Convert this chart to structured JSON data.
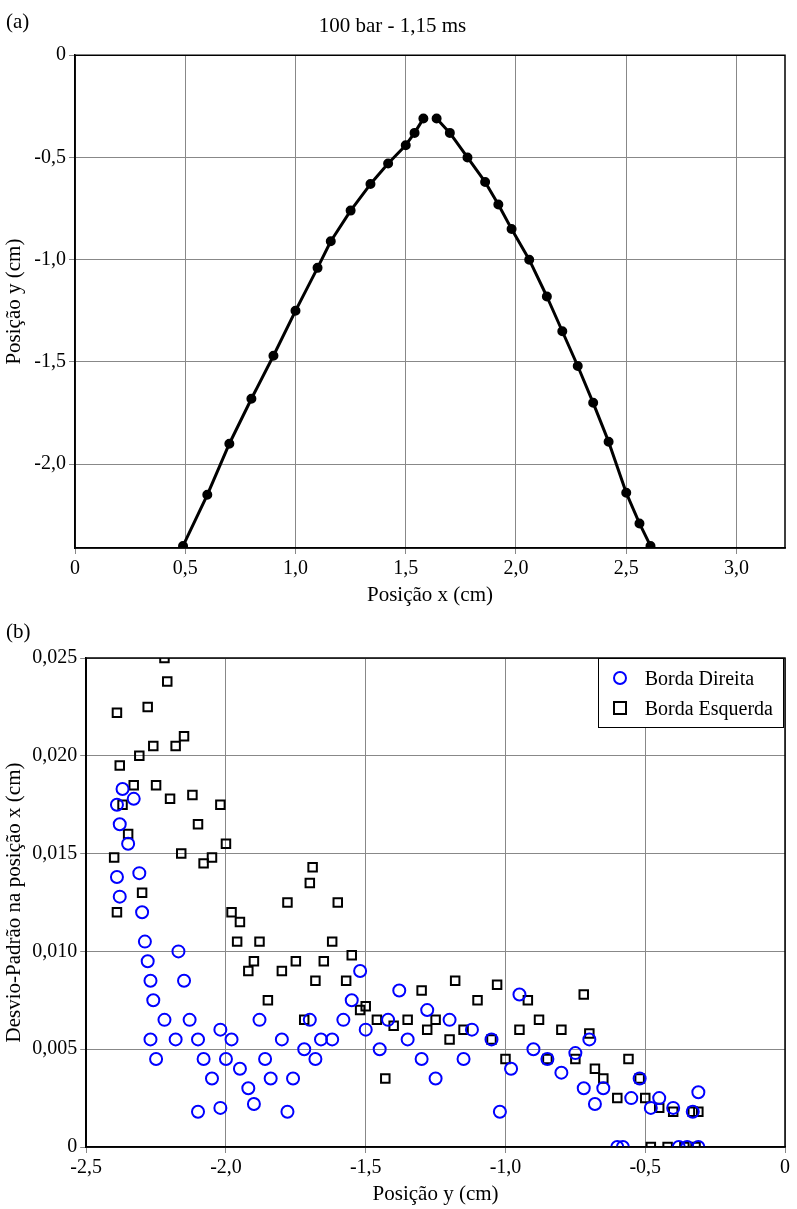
{
  "chart_data": [
    {
      "type": "line",
      "title": "100 bar - 1,15 ms",
      "xlabel": "Posição x (cm)",
      "ylabel": "Posição y (cm)",
      "annotations": [
        "(a)"
      ],
      "xlim": [
        0,
        3.22
      ],
      "ylim": [
        -2.41,
        0
      ],
      "xticks": [
        0,
        {
          "value": 0.5,
          "label": "0,5"
        },
        {
          "value": 1,
          "label": "1,0"
        },
        {
          "value": 1.5,
          "label": "1,5"
        },
        {
          "value": 2,
          "label": "2,0"
        },
        {
          "value": 2.5,
          "label": "2,5"
        },
        {
          "value": 3,
          "label": "3,0"
        }
      ],
      "yticks": [
        0,
        {
          "value": -0.5,
          "label": "-0,5"
        },
        {
          "value": -1,
          "label": "-1,0"
        },
        {
          "value": -1.5,
          "label": "-1,5"
        },
        {
          "value": -2,
          "label": "-2,0"
        }
      ],
      "grid": true,
      "legend": false,
      "marker": "circle",
      "line_style": "solid",
      "series": [
        {
          "color": "#000000",
          "x": [
            0.49,
            0.6,
            0.7,
            0.8,
            0.9,
            1.0,
            1.1,
            1.16,
            1.25,
            1.34,
            1.42,
            1.5,
            1.54,
            1.58
          ],
          "values": [
            -2.4,
            -2.15,
            -1.9,
            -1.68,
            -1.47,
            -1.25,
            -1.04,
            -0.91,
            -0.76,
            -0.63,
            -0.53,
            -0.44,
            -0.38,
            -0.31
          ]
        },
        {
          "color": "#000000",
          "x": [
            1.64,
            1.7,
            1.78,
            1.86,
            1.92,
            1.98,
            2.06,
            2.14,
            2.21,
            2.28,
            2.35,
            2.42,
            2.5,
            2.56,
            2.61
          ],
          "values": [
            -0.31,
            -0.38,
            -0.5,
            -0.62,
            -0.73,
            -0.85,
            -1.0,
            -1.18,
            -1.35,
            -1.52,
            -1.7,
            -1.89,
            -2.14,
            -2.29,
            -2.4
          ]
        }
      ]
    },
    {
      "type": "scatter",
      "xlabel": "Posição y (cm)",
      "ylabel": "Desvio-Padrão na posição x (cm)",
      "annotations": [
        "(b)"
      ],
      "xlim": [
        -2.5,
        0
      ],
      "ylim": [
        0,
        0.025
      ],
      "xticks": [
        {
          "value": -2.5,
          "label": "-2,5"
        },
        {
          "value": -2,
          "label": "-2,0"
        },
        {
          "value": -1.5,
          "label": "-1,5"
        },
        {
          "value": -1,
          "label": "-1,0"
        },
        {
          "value": -0.5,
          "label": "-0,5"
        },
        0
      ],
      "yticks": [
        0,
        {
          "value": 0.005,
          "label": "0,005"
        },
        {
          "value": 0.01,
          "label": "0,010"
        },
        {
          "value": 0.015,
          "label": "0,015"
        },
        {
          "value": 0.02,
          "label": "0,020"
        },
        {
          "value": 0.025,
          "label": "0,025"
        }
      ],
      "grid": true,
      "legend": "top right",
      "series": [
        {
          "name": "Borda Direita",
          "color": "#0000ff",
          "marker": "circle",
          "x": [
            -2.39,
            -2.38,
            -2.37,
            -2.39,
            -2.38,
            -2.35,
            -2.33,
            -2.31,
            -2.3,
            -2.29,
            -2.28,
            -2.27,
            -2.26,
            -2.27,
            -2.25,
            -2.22,
            -2.18,
            -2.17,
            -2.15,
            -2.13,
            -2.1,
            -2.1,
            -2.08,
            -2.05,
            -2.02,
            -2.02,
            -2.0,
            -1.98,
            -1.95,
            -1.92,
            -1.9,
            -1.88,
            -1.86,
            -1.84,
            -1.8,
            -1.78,
            -1.76,
            -1.72,
            -1.7,
            -1.68,
            -1.66,
            -1.62,
            -1.58,
            -1.55,
            -1.52,
            -1.5,
            -1.45,
            -1.42,
            -1.38,
            -1.35,
            -1.3,
            -1.28,
            -1.25,
            -1.2,
            -1.15,
            -1.12,
            -1.05,
            -1.02,
            -0.98,
            -0.95,
            -0.9,
            -0.85,
            -0.8,
            -0.75,
            -0.72,
            -0.7,
            -0.68,
            -0.65,
            -0.6,
            -0.58,
            -0.55,
            -0.52,
            -0.48,
            -0.45,
            -0.4,
            -0.38,
            -0.35,
            -0.33,
            -0.31,
            -0.31
          ],
          "values": [
            0.0175,
            0.0165,
            0.0183,
            0.0138,
            0.0128,
            0.0155,
            0.0178,
            0.014,
            0.012,
            0.0105,
            0.0095,
            0.0085,
            0.0075,
            0.0055,
            0.0045,
            0.0065,
            0.0055,
            0.01,
            0.0085,
            0.0065,
            0.0055,
            0.0018,
            0.0045,
            0.0035,
            0.006,
            0.002,
            0.0045,
            0.0055,
            0.004,
            0.003,
            0.0022,
            0.0065,
            0.0045,
            0.0035,
            0.0055,
            0.0018,
            0.0035,
            0.005,
            0.0065,
            0.0045,
            0.0055,
            0.0055,
            0.0065,
            0.0075,
            0.009,
            0.006,
            0.005,
            0.0065,
            0.008,
            0.0055,
            0.0045,
            0.007,
            0.0035,
            0.0065,
            0.0045,
            0.006,
            0.0055,
            0.0018,
            0.004,
            0.0078,
            0.005,
            0.0045,
            0.0038,
            0.0048,
            0.003,
            0.0055,
            0.0022,
            0.003,
            0,
            0,
            0.0025,
            0.0035,
            0.002,
            0.0025,
            0.002,
            0,
            0,
            0.0018,
            0.0028,
            0
          ]
        },
        {
          "name": "Borda Esquerda",
          "color": "#000000",
          "marker": "square",
          "x": [
            -2.39,
            -2.4,
            -2.39,
            -2.38,
            -2.37,
            -2.35,
            -2.33,
            -2.31,
            -2.3,
            -2.28,
            -2.26,
            -2.25,
            -2.22,
            -2.21,
            -2.2,
            -2.18,
            -2.16,
            -2.15,
            -2.12,
            -2.1,
            -2.08,
            -2.05,
            -2.02,
            -2.0,
            -1.98,
            -1.96,
            -1.95,
            -1.92,
            -1.9,
            -1.88,
            -1.85,
            -1.8,
            -1.78,
            -1.75,
            -1.72,
            -1.7,
            -1.69,
            -1.68,
            -1.65,
            -1.62,
            -1.6,
            -1.57,
            -1.55,
            -1.52,
            -1.5,
            -1.46,
            -1.43,
            -1.4,
            -1.35,
            -1.3,
            -1.28,
            -1.25,
            -1.2,
            -1.18,
            -1.15,
            -1.1,
            -1.05,
            -1.03,
            -1.0,
            -0.95,
            -0.92,
            -0.88,
            -0.85,
            -0.8,
            -0.75,
            -0.72,
            -0.7,
            -0.68,
            -0.65,
            -0.6,
            -0.56,
            -0.52,
            -0.5,
            -0.48,
            -0.45,
            -0.42,
            -0.4,
            -0.36,
            -0.33,
            -0.31,
            -0.32
          ],
          "values": [
            0.0222,
            0.0148,
            0.012,
            0.0195,
            0.0175,
            0.016,
            0.0185,
            0.02,
            0.013,
            0.0225,
            0.0205,
            0.0185,
            0.025,
            0.0238,
            0.0178,
            0.0205,
            0.015,
            0.021,
            0.018,
            0.0165,
            0.0145,
            0.0148,
            0.0175,
            0.0155,
            0.012,
            0.0105,
            0.0115,
            0.009,
            0.0095,
            0.0105,
            0.0075,
            0.009,
            0.0125,
            0.0095,
            0.0065,
            0.0135,
            0.0143,
            0.0085,
            0.0095,
            0.0105,
            0.0125,
            0.0085,
            0.0098,
            0.007,
            0.0072,
            0.0065,
            0.0035,
            0.0062,
            0.0065,
            0.008,
            0.006,
            0.0065,
            0.0055,
            0.0085,
            0.006,
            0.0075,
            0.0055,
            0.0083,
            0.0045,
            0.006,
            0.0075,
            0.0065,
            0.0045,
            0.006,
            0.0045,
            0.0078,
            0.0058,
            0.004,
            0.0035,
            0.0025,
            0.0045,
            0.0035,
            0.0025,
            0,
            0.002,
            0,
            0.0018,
            0,
            0.0018,
            0.0018,
            0
          ]
        }
      ]
    }
  ]
}
